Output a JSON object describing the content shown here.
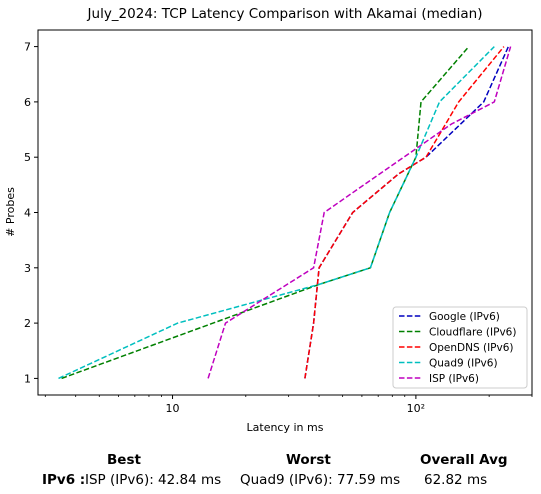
{
  "chart_data": {
    "type": "line",
    "title": "July_2024: TCP Latency Comparison with Akamai (median)",
    "xlabel": "Latency in ms",
    "ylabel": "# Probes",
    "xscale": "log",
    "xlim": [
      2.8,
      300
    ],
    "ylim": [
      0.7,
      7.3
    ],
    "xticks": [
      10,
      100
    ],
    "xtick_labels": [
      "10",
      "10²"
    ],
    "yticks": [
      1,
      2,
      3,
      4,
      5,
      6,
      7
    ],
    "legend_position": "lower-right",
    "grid": false,
    "series": [
      {
        "name": "Google (IPv6)",
        "color": "#0000bf",
        "x": [
          35,
          38,
          40,
          55,
          85,
          110,
          190,
          240
        ],
        "y": [
          1,
          2,
          3,
          4,
          4.7,
          5,
          6,
          7
        ]
      },
      {
        "name": "Cloudflare (IPv6)",
        "color": "#008000",
        "x": [
          3.5,
          40,
          65,
          78,
          100,
          105,
          165
        ],
        "y": [
          1,
          2.7,
          3,
          4,
          5,
          6,
          7
        ]
      },
      {
        "name": "OpenDNS (IPv6)",
        "color": "#ff0000",
        "x": [
          35,
          38,
          40,
          55,
          85,
          110,
          150,
          230
        ],
        "y": [
          1,
          2,
          3,
          4,
          4.7,
          5,
          6,
          7
        ]
      },
      {
        "name": "Quad9 (IPv6)",
        "color": "#00bfbf",
        "x": [
          3.4,
          10.5,
          40,
          65,
          78,
          100,
          125,
          210
        ],
        "y": [
          1,
          2,
          2.7,
          3,
          4,
          5,
          6,
          7
        ]
      },
      {
        "name": "ISP (IPv6)",
        "color": "#bf00bf",
        "x": [
          14,
          16.5,
          38,
          42,
          140,
          210,
          245
        ],
        "y": [
          1,
          2,
          3,
          4,
          5.6,
          6,
          7
        ]
      }
    ]
  },
  "summary": {
    "best_header": "Best",
    "worst_header": "Worst",
    "avg_header": "Overall Avg",
    "row_label": "IPv6 :",
    "best_value": "ISP (IPv6): 42.84 ms",
    "worst_value": "Quad9 (IPv6): 77.59 ms",
    "avg_value": "62.82 ms"
  }
}
